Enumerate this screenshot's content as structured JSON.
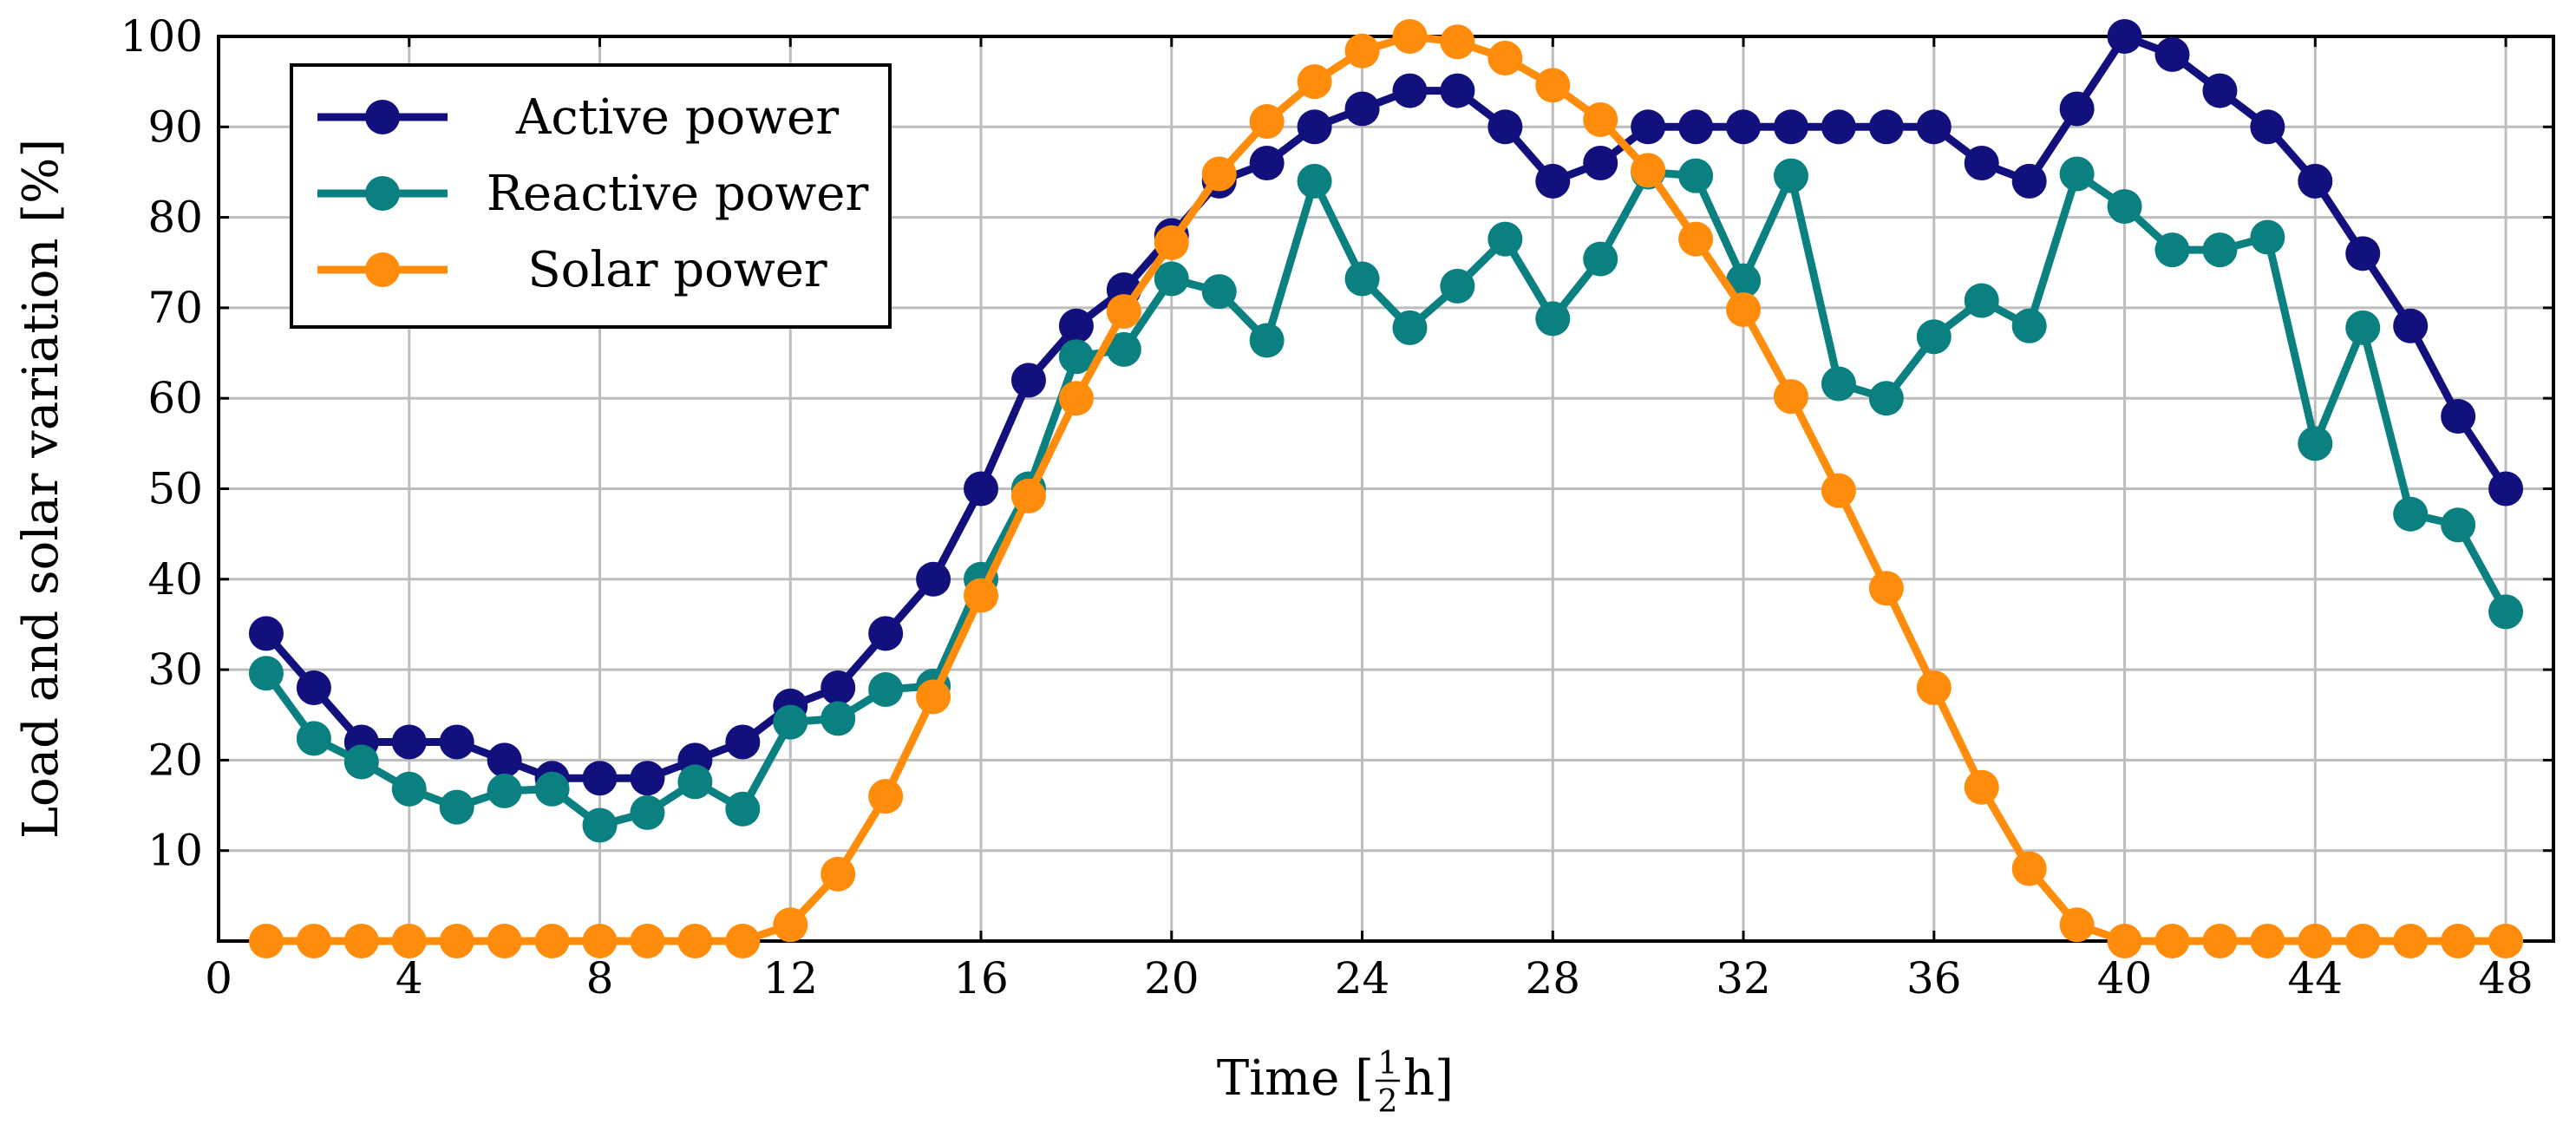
{
  "chart_data": {
    "type": "line",
    "title": "",
    "xlabel": "Time [",
    "xlabel_fraction": {
      "num": "1",
      "den": "2"
    },
    "xlabel_suffix": "h]",
    "ylabel": "Load and solar variation [%]",
    "xlim": [
      0,
      49
    ],
    "ylim": [
      0,
      100
    ],
    "xticks": [
      0,
      4,
      8,
      12,
      16,
      20,
      24,
      28,
      32,
      36,
      40,
      44,
      48
    ],
    "yticks": [
      10,
      20,
      30,
      40,
      50,
      60,
      70,
      80,
      90,
      100
    ],
    "xgrid": [
      4,
      8,
      12,
      16,
      20,
      24,
      28,
      32,
      36,
      40,
      44,
      48
    ],
    "ygrid": [
      10,
      20,
      30,
      40,
      50,
      60,
      70,
      80,
      90,
      100
    ],
    "grid": true,
    "legend_position": "top-left",
    "x": [
      1,
      2,
      3,
      4,
      5,
      6,
      7,
      8,
      9,
      10,
      11,
      12,
      13,
      14,
      15,
      16,
      17,
      18,
      19,
      20,
      21,
      22,
      23,
      24,
      25,
      26,
      27,
      28,
      29,
      30,
      31,
      32,
      33,
      34,
      35,
      36,
      37,
      38,
      39,
      40,
      41,
      42,
      43,
      44,
      45,
      46,
      47,
      48
    ],
    "series": [
      {
        "name": "Active power",
        "color": "#12107d",
        "values": [
          34,
          28,
          22,
          22,
          22,
          20,
          18,
          18,
          18,
          20,
          22,
          26,
          28,
          34,
          40,
          50,
          62,
          68,
          72,
          78,
          84,
          86,
          90,
          92,
          94,
          94,
          90,
          84,
          86,
          90,
          90,
          90,
          90,
          90,
          90,
          90,
          86,
          84,
          92,
          100,
          98,
          94,
          90,
          84,
          76,
          68,
          58,
          50
        ]
      },
      {
        "name": "Reactive power",
        "color": "#0a8080",
        "values": [
          29.6,
          22.4,
          19.8,
          16.8,
          14.8,
          16.6,
          16.8,
          12.8,
          14.2,
          17.6,
          14.6,
          24.2,
          24.6,
          27.8,
          28.2,
          40,
          50,
          64.6,
          65.4,
          73.2,
          71.8,
          66.4,
          84,
          73.2,
          67.8,
          72.4,
          77.6,
          68.8,
          75.4,
          85,
          84.6,
          73,
          84.6,
          61.6,
          60,
          66.8,
          70.8,
          68,
          84.8,
          81.2,
          76.4,
          76.4,
          77.8,
          55,
          67.8,
          47.2,
          46,
          36.4
        ]
      },
      {
        "name": "Solar power",
        "color": "#ff8c0a",
        "values": [
          0,
          0,
          0,
          0,
          0,
          0,
          0,
          0,
          0,
          0,
          0,
          1.8,
          7.4,
          16,
          27,
          38.2,
          49.2,
          60,
          69.6,
          77.2,
          84.8,
          90.6,
          95,
          98.4,
          100,
          99.4,
          97.6,
          94.6,
          90.8,
          85.2,
          77.6,
          69.8,
          60.2,
          49.8,
          39,
          28,
          17,
          8,
          1.8,
          0,
          0,
          0,
          0,
          0,
          0,
          0,
          0,
          0
        ]
      }
    ]
  }
}
